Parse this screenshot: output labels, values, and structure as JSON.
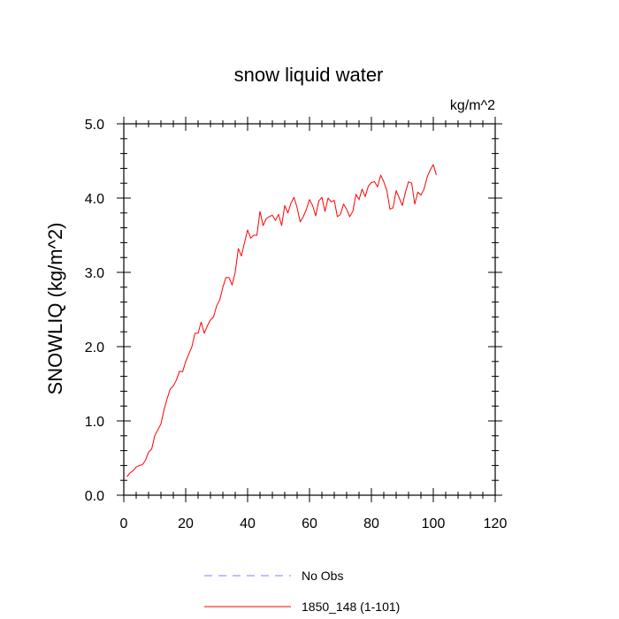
{
  "chart_data": {
    "type": "line",
    "title": "snow liquid water",
    "units_label": "kg/m^2",
    "ylabel": "SNOWLIQ  (kg/m^2)",
    "xlabel": "",
    "xlim": [
      0,
      120
    ],
    "ylim": [
      0.0,
      5.0
    ],
    "xticks": [
      0,
      20,
      40,
      60,
      80,
      100,
      120
    ],
    "xtick_labels": [
      "0",
      "20",
      "40",
      "60",
      "80",
      "100",
      "120"
    ],
    "yticks": [
      0.0,
      1.0,
      2.0,
      3.0,
      4.0,
      5.0
    ],
    "ytick_labels": [
      "0.0",
      "1.0",
      "2.0",
      "3.0",
      "4.0",
      "5.0"
    ],
    "legend": [
      {
        "label": "No Obs",
        "color": "#8080ff",
        "style": "dashed"
      },
      {
        "label": "1850_148 (1-101)",
        "color": "#ff0000",
        "style": "solid"
      }
    ],
    "series": [
      {
        "name": "1850_148 (1-101)",
        "color": "#ff0000",
        "x_start": 1,
        "values": [
          0.25,
          0.3,
          0.33,
          0.38,
          0.4,
          0.41,
          0.47,
          0.58,
          0.62,
          0.8,
          0.88,
          0.96,
          1.15,
          1.3,
          1.43,
          1.47,
          1.55,
          1.67,
          1.66,
          1.8,
          1.9,
          2.0,
          2.18,
          2.18,
          2.33,
          2.18,
          2.28,
          2.36,
          2.4,
          2.55,
          2.63,
          2.8,
          2.93,
          2.93,
          2.83,
          3.0,
          3.32,
          3.22,
          3.4,
          3.57,
          3.46,
          3.5,
          3.5,
          3.82,
          3.63,
          3.72,
          3.75,
          3.77,
          3.7,
          3.78,
          3.63,
          3.9,
          3.8,
          3.93,
          4.01,
          3.87,
          3.68,
          3.75,
          3.85,
          3.98,
          3.9,
          3.76,
          3.96,
          4.01,
          3.82,
          4.0,
          3.95,
          3.97,
          3.75,
          3.78,
          3.92,
          3.85,
          3.75,
          3.82,
          4.05,
          3.98,
          4.12,
          4.02,
          4.16,
          4.21,
          4.22,
          4.15,
          4.31,
          4.22,
          4.1,
          3.85,
          3.87,
          4.1,
          4.0,
          3.9,
          4.08,
          4.22,
          4.2,
          3.92,
          4.08,
          4.04,
          4.12,
          4.28,
          4.38,
          4.45,
          4.31
        ]
      }
    ]
  }
}
